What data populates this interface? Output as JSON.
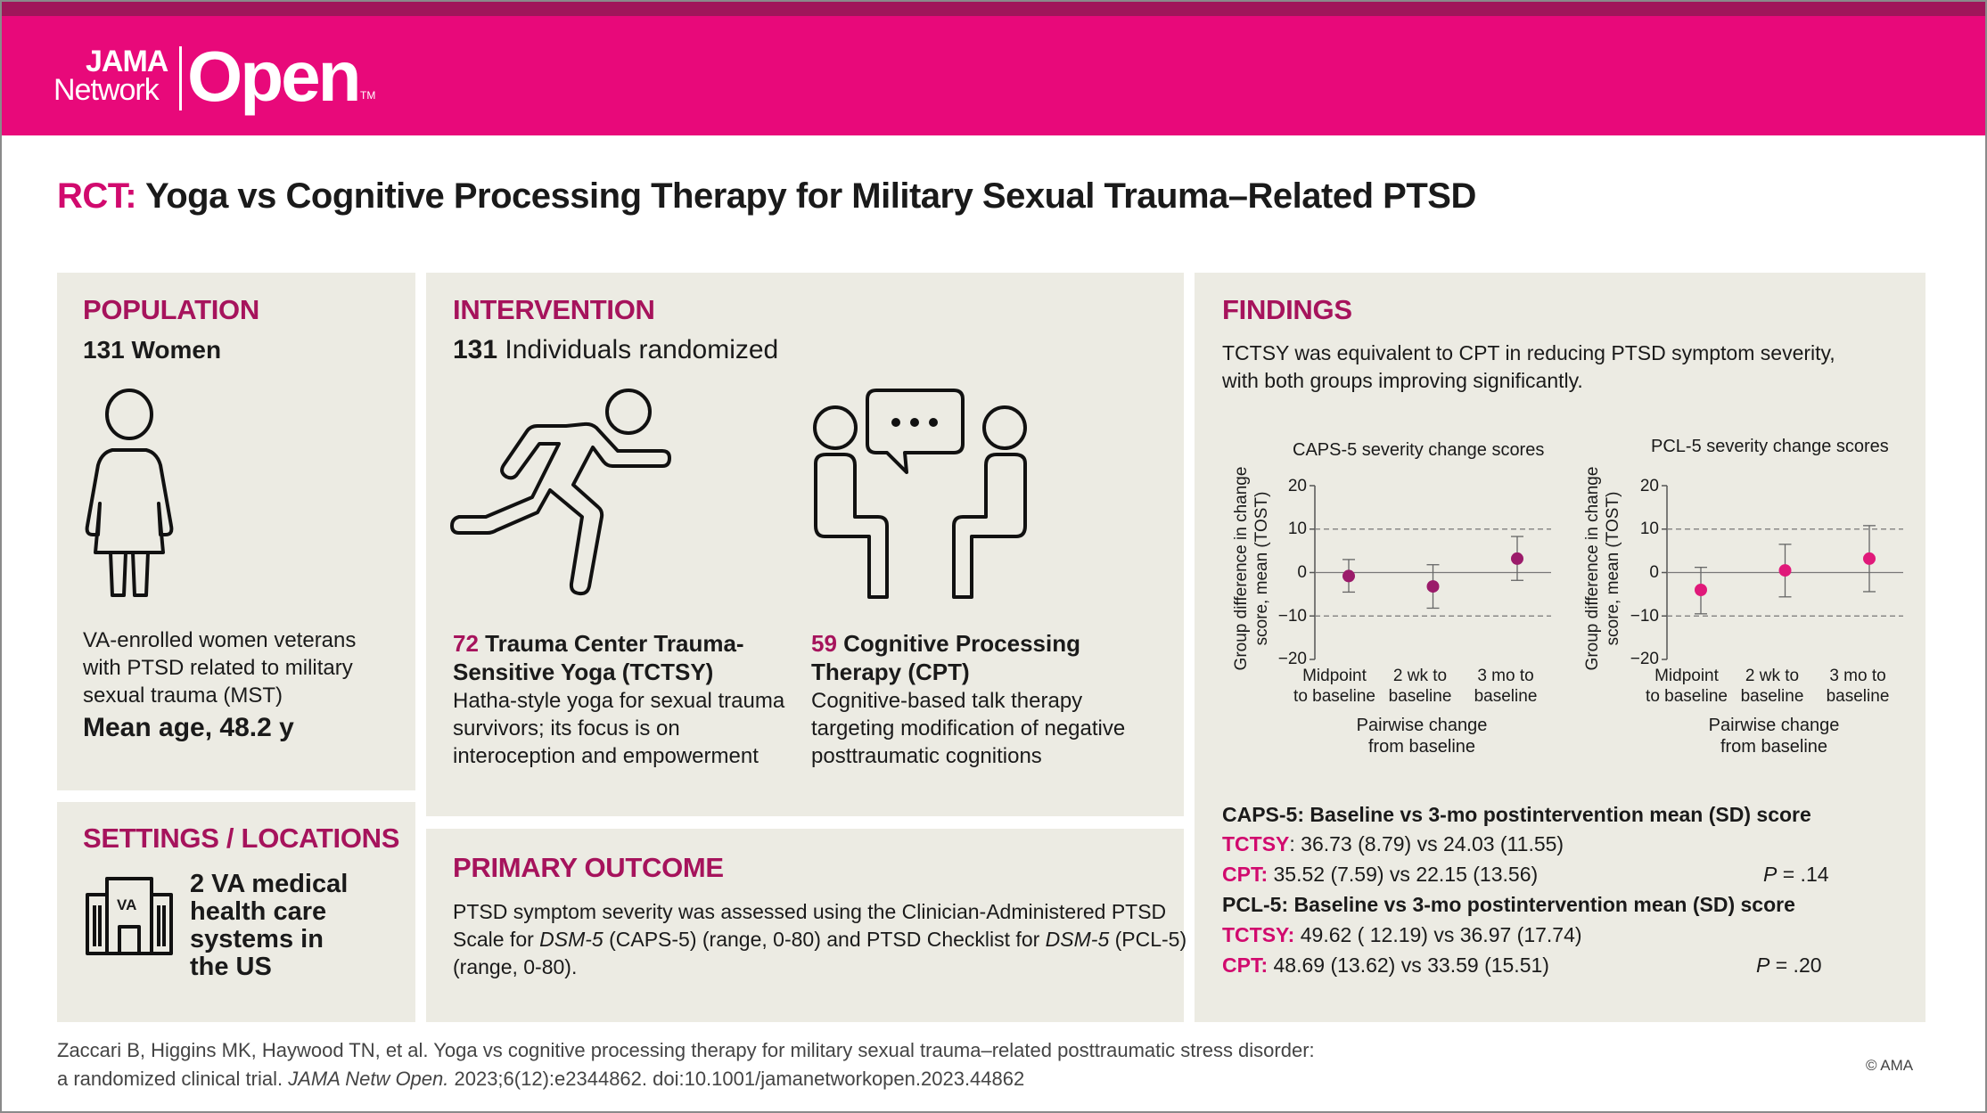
{
  "header": {
    "brand_jama": "JAMA",
    "brand_network": "Network",
    "brand_open": "Open",
    "brand_tm": "TM",
    "accent": "#e8097a",
    "strip": "#a0165a"
  },
  "title": {
    "prefix": "RCT:",
    "text": " Yoga vs Cognitive Processing Therapy for Military Sexual Trauma–Related PTSD"
  },
  "population": {
    "heading": "POPULATION",
    "count_bold": "131 Women",
    "icon": "woman-icon",
    "desc": [
      "VA-enrolled women veterans",
      "with PTSD related to military",
      "sexual trauma (MST)"
    ],
    "mean_age": "Mean age, 48.2 y"
  },
  "settings": {
    "heading": "SETTINGS / LOCATIONS",
    "icon": "hospital-building-icon",
    "icon_text": "VA",
    "desc": [
      "2 VA medical",
      "health care",
      "systems in",
      "the US"
    ]
  },
  "intervention": {
    "heading": "INTERVENTION",
    "count": "131",
    "count_label": " Individuals randomized",
    "arm1": {
      "icon": "running-person-icon",
      "n": "72",
      "title_l1": " Trauma Center Trauma-",
      "title_l2": "Sensitive Yoga (TCTSY)",
      "desc": [
        "Hatha-style yoga for sexual trauma",
        "survivors; its focus is on",
        "interoception and empowerment"
      ]
    },
    "arm2": {
      "icon": "talk-therapy-icon",
      "n": "59",
      "title_l1": " Cognitive Processing",
      "title_l2": "Therapy (CPT)",
      "desc": [
        "Cognitive-based talk therapy",
        "targeting modification of negative",
        "posttraumatic cognitions"
      ]
    }
  },
  "primary_outcome": {
    "heading": "PRIMARY OUTCOME",
    "l1": "PTSD symptom severity was assessed using the Clinician-Administered PTSD",
    "l2a": "Scale for ",
    "l2b": "DSM-5",
    "l2c": " (CAPS-5) (range, 0-80) and PTSD Checklist for ",
    "l2d": "DSM-5",
    "l2e": " (PCL-5)",
    "l3": "(range, 0-80)."
  },
  "findings": {
    "heading": "FINDINGS",
    "summary": [
      "TCTSY was equivalent to CPT in reducing PTSD symptom severity,",
      "with both groups improving significantly."
    ],
    "ylabel_l1": "Group difference in change",
    "ylabel_l2": "score, mean (TOST)",
    "xlabel_l1": "Pairwise change",
    "xlabel_l2": "from baseline",
    "yticks": [
      "20",
      "10",
      "0",
      "−10",
      "−20"
    ],
    "xticks": [
      [
        "Midpoint",
        "to baseline"
      ],
      [
        "2 wk to",
        "baseline"
      ],
      [
        "3 mo to",
        "baseline"
      ]
    ],
    "caps_header": "CAPS-5: Baseline vs 3-mo postintervention mean (SD) score",
    "caps_tctsy_label": "TCTSY",
    "caps_tctsy": ": 36.73 (8.79) vs 24.03 (11.55)",
    "caps_cpt_label": "CPT:",
    "caps_cpt": " 35.52 (7.59) vs 22.15 (13.56)",
    "caps_p_label": "P",
    "caps_p": " = .14",
    "pcl_header": "PCL-5: Baseline vs 3-mo postintervention mean (SD) score",
    "pcl_tctsy_label": "TCTSY:",
    "pcl_tctsy": " 49.62 ( 12.19) vs 36.97 (17.74)",
    "pcl_cpt_label": "CPT:",
    "pcl_cpt": " 48.69 (13.62) vs 33.59 (15.51)",
    "pcl_p_label": "P",
    "pcl_p": " = .20"
  },
  "chart_data": [
    {
      "type": "scatter",
      "title": "CAPS-5 severity change scores",
      "xlabel": "Pairwise change from baseline",
      "ylabel": "Group difference in change score, mean (TOST)",
      "categories": [
        "Midpoint to baseline",
        "2 wk to baseline",
        "3 mo to baseline"
      ],
      "values": [
        -0.8,
        -3.2,
        3.2
      ],
      "lower": [
        -4.5,
        -8.2,
        -1.8
      ],
      "upper": [
        3.0,
        1.8,
        8.3
      ],
      "ylim": [
        -20,
        20
      ],
      "yticks": [
        20,
        10,
        0,
        -10,
        -20
      ],
      "equivalence_bounds": [
        -10,
        10
      ],
      "color": "#9b1b6a"
    },
    {
      "type": "scatter",
      "title": "PCL-5 severity change scores",
      "xlabel": "Pairwise change from baseline",
      "ylabel": "Group difference in change score, mean (TOST)",
      "categories": [
        "Midpoint to baseline",
        "2 wk to baseline",
        "3 mo to baseline"
      ],
      "values": [
        -4.0,
        0.5,
        3.2
      ],
      "lower": [
        -9.5,
        -5.6,
        -4.4
      ],
      "upper": [
        1.2,
        6.5,
        10.8
      ],
      "ylim": [
        -20,
        20
      ],
      "yticks": [
        20,
        10,
        0,
        -10,
        -20
      ],
      "equivalence_bounds": [
        -10,
        10
      ],
      "color": "#e0197a"
    }
  ],
  "citation": {
    "l1": "Zaccari B, Higgins MK, Haywood TN, et al. Yoga vs cognitive processing therapy for military sexual trauma–related posttraumatic stress disorder:",
    "l2a": "a randomized clinical trial. ",
    "l2b": "JAMA Netw Open.",
    "l2c": " 2023;6(12):e2344862. doi:10.1001/jamanetworkopen.2023.44862",
    "copyright": "© AMA"
  }
}
